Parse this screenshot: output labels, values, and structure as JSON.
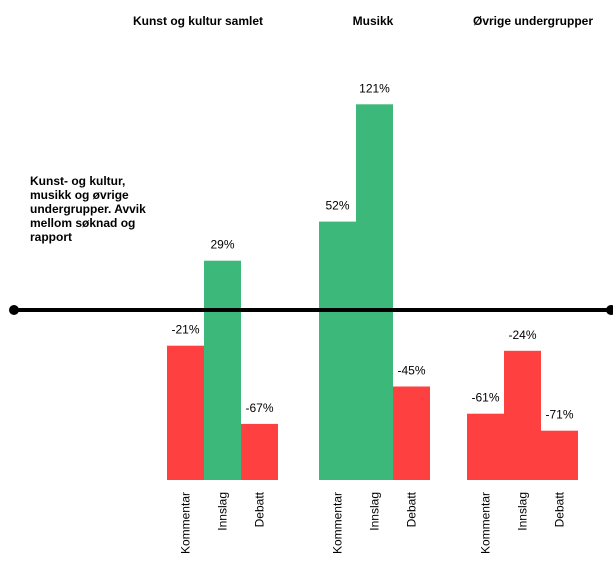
{
  "chart_data": {
    "type": "bar",
    "title_lines": [
      "Kunst- og kultur,",
      "musikk og øvrige",
      "undergrupper. Avvik",
      "mellom søknad og",
      "rapport"
    ],
    "colors": {
      "positive": "#3bb87a",
      "negative": "#ff4040",
      "baseline": "#000000"
    },
    "groups": [
      {
        "title": "Kunst og kultur samlet",
        "categories": [
          "Kommentar",
          "Innslag",
          "Debatt"
        ],
        "values": [
          -21,
          29,
          -67
        ],
        "labels": [
          "-21%",
          "29%",
          "-67%"
        ]
      },
      {
        "title": "Musikk",
        "categories": [
          "Kommentar",
          "Innslag",
          "Debatt"
        ],
        "values": [
          52,
          121,
          -45
        ],
        "labels": [
          "52%",
          "121%",
          "-45%"
        ]
      },
      {
        "title": "Øvrige undergrupper",
        "categories": [
          "Kommentar",
          "Innslag",
          "Debatt"
        ],
        "values": [
          -61,
          -24,
          -71
        ],
        "labels": [
          "-61%",
          "-24%",
          "-71%"
        ]
      }
    ]
  }
}
